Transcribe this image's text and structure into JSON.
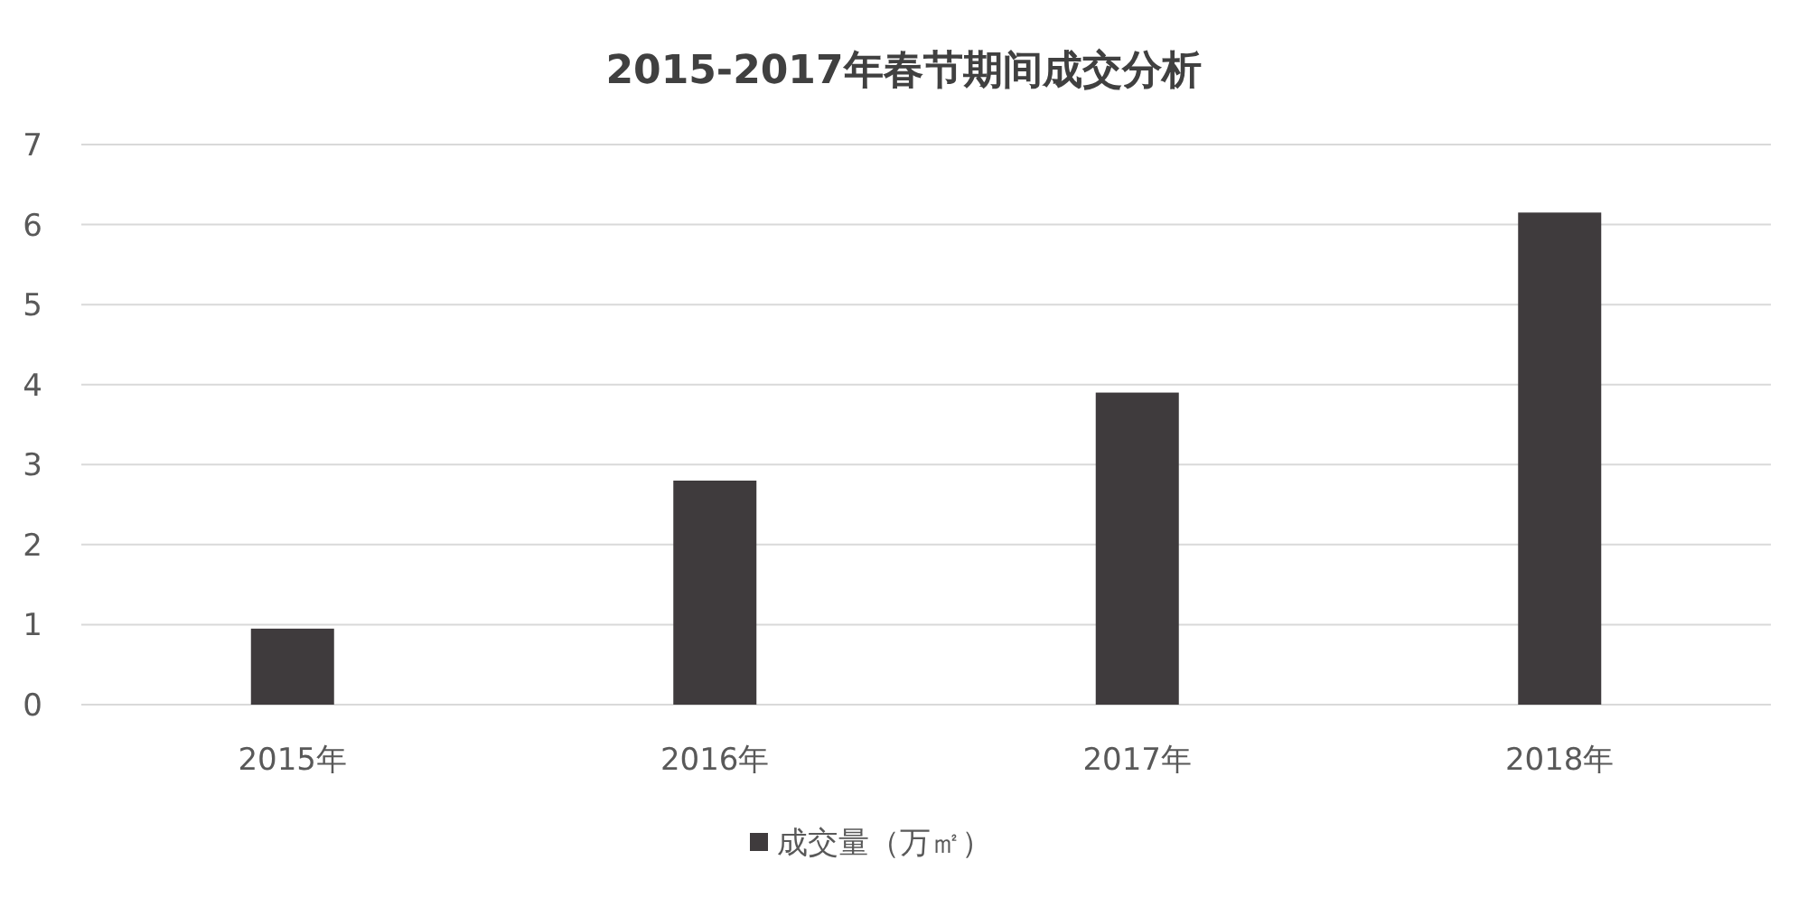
{
  "chart_data": {
    "type": "bar",
    "title": "2015-2017年春节期间成交分析",
    "categories": [
      "2015年",
      "2016年",
      "2017年",
      "2018年"
    ],
    "series": [
      {
        "name": "成交量（万㎡）",
        "color": "#3f3b3d",
        "values": [
          0.95,
          2.8,
          3.9,
          6.15
        ]
      }
    ],
    "ylim": [
      0,
      7
    ],
    "yticks": [
      0,
      1,
      2,
      3,
      4,
      5,
      6,
      7
    ],
    "grid": "y",
    "legend": "bottom"
  }
}
